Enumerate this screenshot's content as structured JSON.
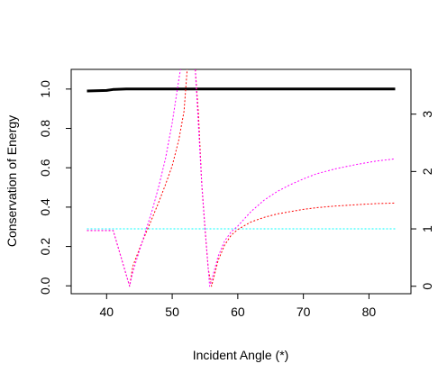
{
  "chart_data": {
    "type": "line",
    "xlabel": "Incident Angle (*)",
    "ylabel": "Conservation of Energy",
    "xlim": [
      34.6,
      86.4
    ],
    "ylim": [
      -0.04,
      1.1
    ],
    "y2lim": [
      -0.13,
      3.78
    ],
    "xticks": [
      "40",
      "50",
      "60",
      "70",
      "80"
    ],
    "xtick_values": [
      40,
      50,
      60,
      70,
      80
    ],
    "yticks": [
      "0.0",
      "0.2",
      "0.4",
      "0.6",
      "0.8",
      "1.0"
    ],
    "ytick_values": [
      0,
      0.2,
      0.4,
      0.6,
      0.8,
      1.0
    ],
    "y2ticks": [
      "0",
      "1",
      "2",
      "3"
    ],
    "y2tick_values": [
      0,
      1,
      2,
      3
    ],
    "series": [
      {
        "color": "#000000",
        "axis": "left",
        "style": "solid",
        "x": [
          37,
          40,
          41,
          43,
          50,
          60,
          70,
          84
        ],
        "y": [
          0.99,
          0.993,
          0.998,
          1.0,
          1.0,
          1.0,
          1.0,
          1.0
        ]
      },
      {
        "color": "#00ffff",
        "axis": "right",
        "style": "dotted",
        "x": [
          37,
          41,
          42,
          43.5,
          45,
          47,
          50,
          55,
          60,
          70,
          84
        ],
        "y": [
          1.0,
          1.0,
          1.0,
          1.0,
          1.0,
          1.0,
          1.0,
          1.0,
          1.0,
          1.0,
          1.0
        ]
      },
      {
        "color": "#ff0000",
        "axis": "right",
        "style": "dotted",
        "x": [
          37,
          41,
          43.5,
          44,
          45,
          46,
          47,
          48,
          49,
          50,
          51,
          51.8,
          52.3,
          53.5,
          54,
          54.5,
          55,
          55.5,
          56,
          57,
          58,
          59,
          60,
          62,
          64,
          66,
          68,
          70,
          72,
          75,
          78,
          81,
          84
        ],
        "y": [
          0.97,
          0.97,
          0.0,
          0.35,
          0.65,
          0.93,
          1.2,
          1.48,
          1.78,
          2.1,
          2.55,
          3.05,
          3.8,
          3.8,
          3.0,
          1.8,
          1.0,
          0.3,
          0.0,
          0.45,
          0.72,
          0.89,
          0.99,
          1.12,
          1.2,
          1.26,
          1.3,
          1.34,
          1.37,
          1.4,
          1.42,
          1.44,
          1.45
        ]
      },
      {
        "color": "#ff00ff",
        "axis": "right",
        "style": "dotted",
        "x": [
          37,
          41,
          43.5,
          44,
          45,
          46,
          47,
          48,
          49,
          50,
          51,
          51.3,
          53.5,
          54,
          54.5,
          55,
          55.5,
          55.7,
          56,
          57,
          58,
          59,
          60,
          62,
          64,
          66,
          68,
          70,
          72,
          75,
          78,
          81,
          84
        ],
        "y": [
          0.97,
          0.97,
          0.0,
          0.25,
          0.62,
          0.98,
          1.34,
          1.76,
          2.24,
          2.85,
          3.6,
          3.8,
          3.8,
          2.8,
          1.8,
          1.0,
          0.3,
          0.0,
          0.1,
          0.52,
          0.79,
          0.95,
          1.05,
          1.3,
          1.5,
          1.65,
          1.77,
          1.87,
          1.96,
          2.05,
          2.12,
          2.18,
          2.22
        ]
      }
    ]
  }
}
